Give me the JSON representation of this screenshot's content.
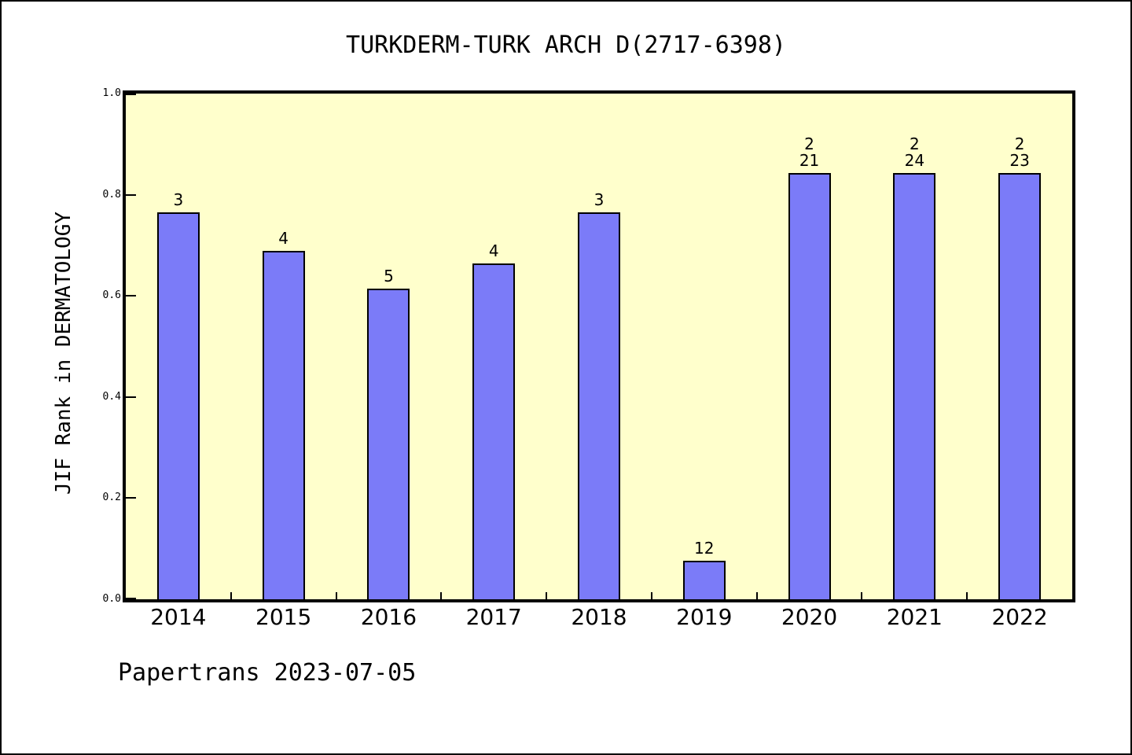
{
  "footer": {
    "text": "Papertrans 2023-07-05"
  },
  "chart_data": {
    "type": "bar",
    "title": "TURKDERM-TURK ARCH D(2717-6398)",
    "ylabel": "JIF Rank in DERMATOLOGY",
    "xlabel": "",
    "categories": [
      "2014",
      "2015",
      "2016",
      "2017",
      "2018",
      "2019",
      "2020",
      "2021",
      "2022"
    ],
    "values": [
      0.765,
      0.689,
      0.614,
      0.664,
      0.765,
      0.076,
      0.843,
      0.843,
      0.843
    ],
    "bar_labels": [
      "3",
      "4",
      "5",
      "4",
      "3",
      "12",
      "2\n21",
      "2\n24",
      "2\n23"
    ],
    "ylim": [
      0.0,
      1.0
    ],
    "yticks": [
      "0.0",
      "0.2",
      "0.4",
      "0.6",
      "0.8",
      "1.0"
    ],
    "grid": false,
    "legend": "none",
    "colors": {
      "bar_fill": "#7b7bf8",
      "bar_edge": "#000000",
      "plot_background": "#ffffcc",
      "page_background": "#ffffff",
      "ink": "#000000"
    }
  }
}
